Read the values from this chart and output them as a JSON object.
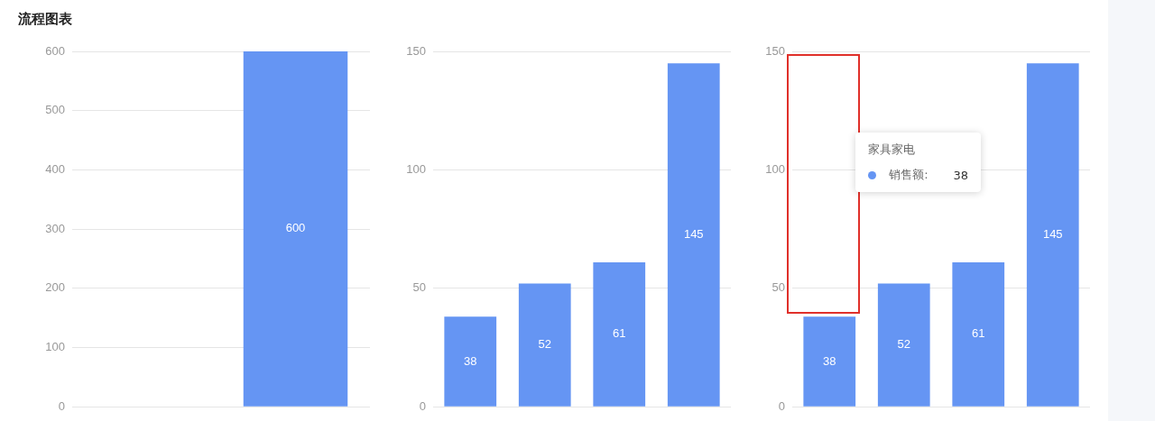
{
  "chart_data": [
    {
      "type": "bar",
      "title": "流程图表",
      "categories": [
        null,
        null
      ],
      "series": [
        {
          "color": "#6595f3",
          "values": [
            null,
            600
          ]
        }
      ],
      "ylim": [
        0,
        600
      ],
      "yticks": [
        0,
        100,
        200,
        300,
        400,
        500,
        600
      ],
      "grid": "y",
      "tick_labels": "y",
      "data_labels": true
    },
    {
      "type": "bar",
      "categories": [
        null,
        null,
        null,
        null
      ],
      "series": [
        {
          "color": "#6595f3",
          "values": [
            38,
            52,
            61,
            145
          ]
        }
      ],
      "ylim": [
        0,
        150
      ],
      "yticks": [
        0,
        50,
        100,
        150
      ],
      "grid": "y",
      "tick_labels": "y",
      "data_labels": true
    },
    {
      "type": "bar",
      "categories": [
        null,
        null,
        null,
        null
      ],
      "series": [
        {
          "color": "#6595f3",
          "values": [
            38,
            52,
            61,
            145
          ]
        }
      ],
      "ylim": [
        0,
        150
      ],
      "yticks": [
        0,
        50,
        100,
        150
      ],
      "grid": "y",
      "tick_labels": "y",
      "data_labels": true,
      "annotations": [
        "家具家电",
        "销售额:",
        "38"
      ]
    }
  ]
}
